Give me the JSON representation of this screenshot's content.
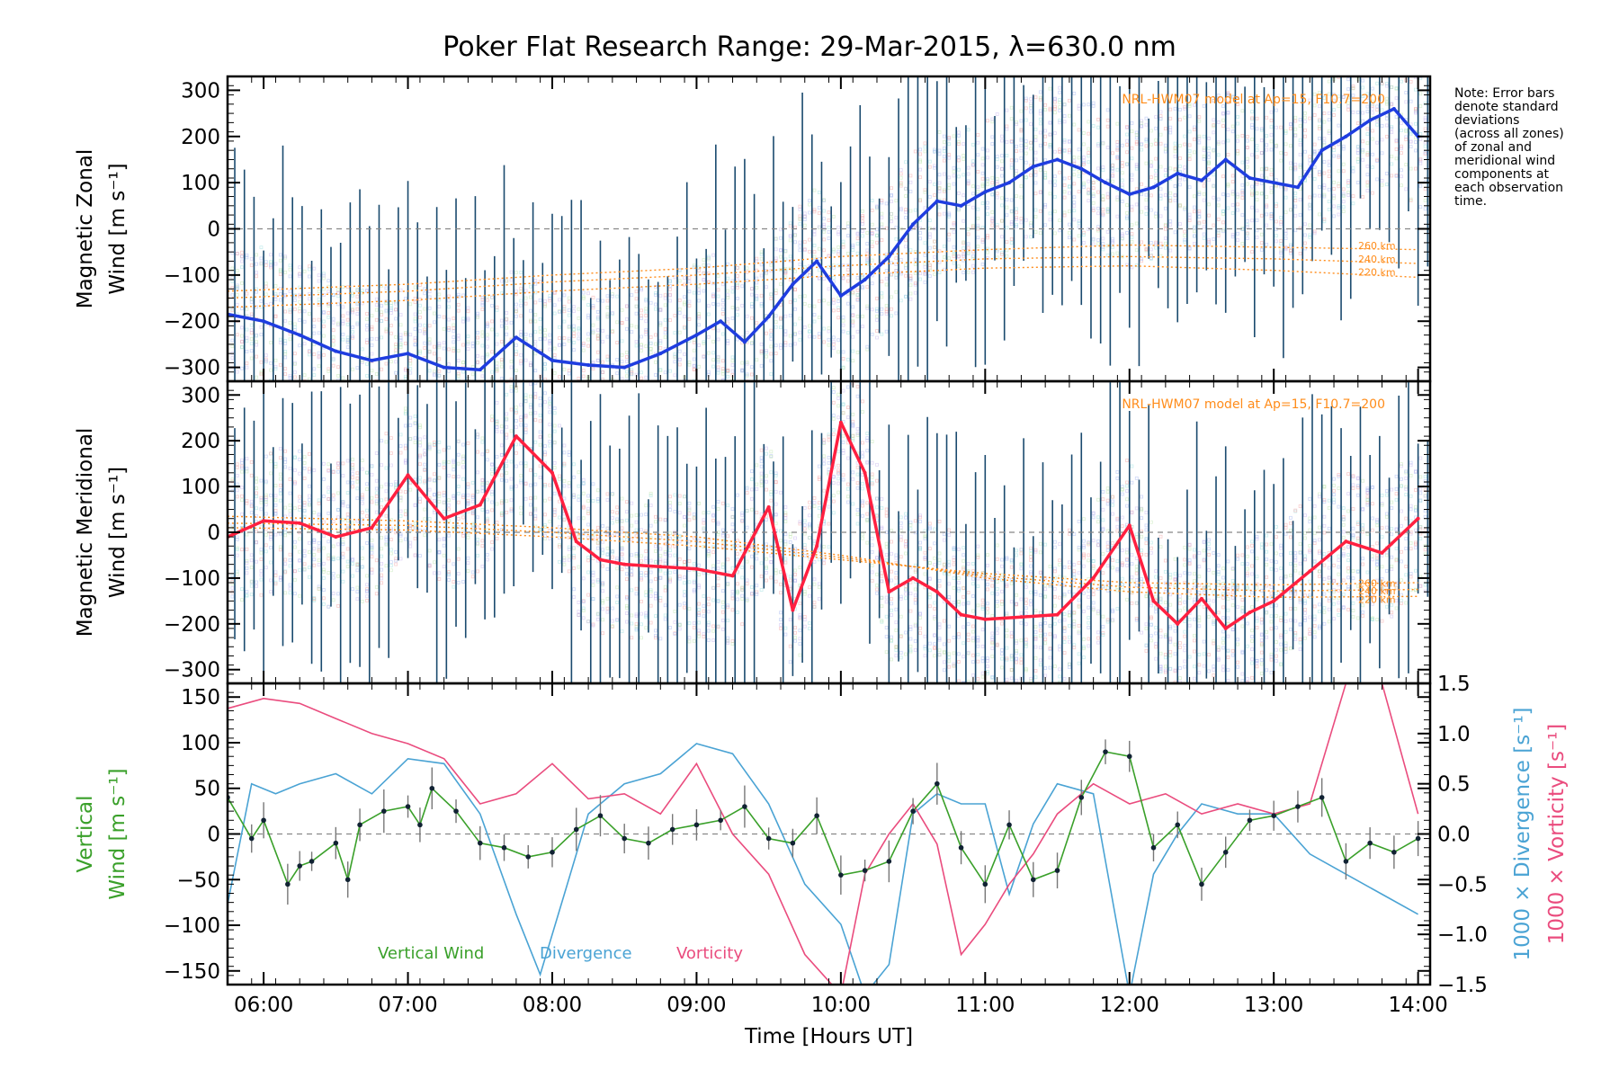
{
  "title": "Poker Flat Research Range: 29-Mar-2015, λ=630.0 nm",
  "note": [
    "Note: Error bars",
    "denote standard",
    "deviations",
    "(across all zones)",
    "of zonal and",
    "meridional wind",
    "components at",
    "each observation",
    "time."
  ],
  "colors": {
    "zonal": "#1f3de0",
    "meridional": "#ff2040",
    "vertical": "#3aa02a",
    "divergence": "#4aa3d4",
    "vorticity": "#ea4c7e",
    "model": "#ff8c1a",
    "errorbar": "#1a4a6e",
    "axis": "#000000"
  },
  "chart_data": [
    {
      "type": "line",
      "panel": "zonal",
      "ylabel": [
        "Magnetic Zonal",
        "Wind [m s⁻¹]"
      ],
      "ylim": [
        -330,
        330
      ],
      "yticks": [
        -300,
        -200,
        -100,
        0,
        100,
        200,
        300
      ],
      "model_label": "NRL-HWM07 model at Ap=15, F10.7=200",
      "model_altitudes": [
        "260 km",
        "240 km",
        "220 km"
      ],
      "series": [
        {
          "x": [
            "05:45",
            "06:00",
            "06:15",
            "06:30",
            "06:45",
            "07:00",
            "07:15",
            "07:30",
            "07:45",
            "08:00",
            "08:15",
            "08:30",
            "08:45",
            "09:00",
            "09:10",
            "09:20",
            "09:30",
            "09:40",
            "09:50",
            "10:00",
            "10:10",
            "10:20",
            "10:30",
            "10:40",
            "10:50",
            "11:00",
            "11:10",
            "11:20",
            "11:30",
            "11:40",
            "11:50",
            "12:00",
            "12:10",
            "12:20",
            "12:30",
            "12:40",
            "12:50",
            "13:00",
            "13:10",
            "13:20",
            "13:30",
            "13:40",
            "13:50",
            "14:00"
          ],
          "y": [
            -185,
            -200,
            -230,
            -265,
            -285,
            -270,
            -300,
            -305,
            -235,
            -285,
            -295,
            -300,
            -270,
            -230,
            -200,
            -245,
            -190,
            -120,
            -70,
            -145,
            -110,
            -60,
            10,
            60,
            50,
            80,
            100,
            135,
            150,
            130,
            100,
            75,
            90,
            120,
            105,
            150,
            110,
            100,
            90,
            170,
            200,
            235,
            260,
            200
          ]
        }
      ],
      "model": [
        {
          "name": "260 km",
          "x": [
            "05:45",
            "07:00",
            "08:00",
            "09:00",
            "10:00",
            "11:00",
            "12:00",
            "13:00",
            "14:00"
          ],
          "y": [
            -135,
            -120,
            -100,
            -85,
            -60,
            -45,
            -35,
            -40,
            -45
          ]
        },
        {
          "name": "240 km",
          "x": [
            "05:45",
            "07:00",
            "08:00",
            "09:00",
            "10:00",
            "11:00",
            "12:00",
            "13:00",
            "14:00"
          ],
          "y": [
            -150,
            -135,
            -115,
            -100,
            -80,
            -65,
            -60,
            -65,
            -75
          ]
        },
        {
          "name": "220 km",
          "x": [
            "05:45",
            "07:00",
            "08:00",
            "09:00",
            "10:00",
            "11:00",
            "12:00",
            "13:00",
            "14:00"
          ],
          "y": [
            -170,
            -155,
            -135,
            -120,
            -100,
            -85,
            -80,
            -90,
            -105
          ]
        }
      ]
    },
    {
      "type": "line",
      "panel": "meridional",
      "ylabel": [
        "Magnetic Meridional",
        "Wind [m s⁻¹]"
      ],
      "ylim": [
        -330,
        330
      ],
      "yticks": [
        -300,
        -200,
        -100,
        0,
        100,
        200,
        300
      ],
      "model_label": "NRL-HWM07 model at Ap=15, F10.7=200",
      "model_altitudes": [
        "260 km",
        "240 km",
        "220 km"
      ],
      "series": [
        {
          "x": [
            "05:45",
            "06:00",
            "06:15",
            "06:30",
            "06:45",
            "07:00",
            "07:15",
            "07:30",
            "07:45",
            "08:00",
            "08:10",
            "08:20",
            "08:30",
            "08:45",
            "09:00",
            "09:15",
            "09:30",
            "09:40",
            "09:50",
            "10:00",
            "10:10",
            "10:20",
            "10:30",
            "10:40",
            "10:50",
            "11:00",
            "11:15",
            "11:30",
            "11:45",
            "12:00",
            "12:10",
            "12:20",
            "12:30",
            "12:40",
            "12:50",
            "13:00",
            "13:15",
            "13:30",
            "13:45",
            "14:00"
          ],
          "y": [
            -10,
            25,
            20,
            -10,
            10,
            125,
            30,
            60,
            210,
            130,
            -20,
            -60,
            -70,
            -75,
            -80,
            -95,
            55,
            -170,
            -30,
            240,
            130,
            -130,
            -100,
            -130,
            -180,
            -190,
            -185,
            -180,
            -100,
            15,
            -150,
            -200,
            -145,
            -210,
            -175,
            -150,
            -85,
            -20,
            -45,
            30
          ]
        }
      ],
      "model": [
        {
          "name": "260 km",
          "x": [
            "05:45",
            "07:00",
            "08:00",
            "09:00",
            "10:00",
            "11:00",
            "12:00",
            "13:00",
            "14:00"
          ],
          "y": [
            10,
            5,
            -10,
            -30,
            -60,
            -90,
            -110,
            -115,
            -110
          ]
        },
        {
          "name": "240 km",
          "x": [
            "05:45",
            "07:00",
            "08:00",
            "09:00",
            "10:00",
            "11:00",
            "12:00",
            "13:00",
            "14:00"
          ],
          "y": [
            20,
            15,
            0,
            -20,
            -55,
            -95,
            -120,
            -128,
            -125
          ]
        },
        {
          "name": "220 km",
          "x": [
            "05:45",
            "07:00",
            "08:00",
            "09:00",
            "10:00",
            "11:00",
            "12:00",
            "13:00",
            "14:00"
          ],
          "y": [
            35,
            25,
            10,
            -10,
            -50,
            -100,
            -130,
            -142,
            -140
          ]
        }
      ]
    },
    {
      "type": "line",
      "panel": "vertical",
      "ylabel": [
        "Vertical",
        "Wind [m s⁻¹]"
      ],
      "ylim": [
        -165,
        165
      ],
      "yticks": [
        -150,
        -100,
        -50,
        0,
        50,
        100,
        150
      ],
      "y2label": [
        "1000 × Divergence [s⁻¹]",
        "1000 × Vorticity [s⁻¹]"
      ],
      "y2lim": [
        -1.5,
        1.5
      ],
      "y2ticks": [
        -1.5,
        -1.0,
        -0.5,
        0.0,
        0.5,
        1.0,
        1.5
      ],
      "xticks": [
        "06:00",
        "07:00",
        "08:00",
        "09:00",
        "10:00",
        "11:00",
        "12:00",
        "13:00",
        "14:00"
      ],
      "xlim": [
        "05:45",
        "14:05"
      ],
      "xlabel": "Time [Hours UT]",
      "legend": [
        "Vertical Wind",
        "Divergence",
        "Vorticity"
      ],
      "series": [
        {
          "name": "Vertical Wind",
          "axis": "left",
          "x": [
            "05:45",
            "05:55",
            "06:00",
            "06:10",
            "06:15",
            "06:20",
            "06:30",
            "06:35",
            "06:40",
            "06:50",
            "07:00",
            "07:05",
            "07:10",
            "07:20",
            "07:30",
            "07:40",
            "07:50",
            "08:00",
            "08:10",
            "08:20",
            "08:30",
            "08:40",
            "08:50",
            "09:00",
            "09:10",
            "09:20",
            "09:30",
            "09:40",
            "09:50",
            "10:00",
            "10:10",
            "10:20",
            "10:30",
            "10:40",
            "10:50",
            "11:00",
            "11:10",
            "11:20",
            "11:30",
            "11:40",
            "11:50",
            "12:00",
            "12:10",
            "12:20",
            "12:30",
            "12:40",
            "12:50",
            "13:00",
            "13:10",
            "13:20",
            "13:30",
            "13:40",
            "13:50",
            "14:00"
          ],
          "y": [
            40,
            -5,
            15,
            -55,
            -35,
            -30,
            -10,
            -50,
            10,
            25,
            30,
            10,
            50,
            25,
            -10,
            -15,
            -25,
            -20,
            5,
            20,
            -5,
            -10,
            5,
            10,
            15,
            30,
            -5,
            -10,
            20,
            -45,
            -40,
            -30,
            25,
            55,
            -15,
            -55,
            10,
            -50,
            -40,
            40,
            90,
            85,
            -15,
            10,
            -55,
            -20,
            15,
            20,
            30,
            40,
            -30,
            -10,
            -20,
            -5
          ]
        },
        {
          "name": "Divergence",
          "axis": "right",
          "x": [
            "05:45",
            "05:55",
            "06:05",
            "06:15",
            "06:30",
            "06:45",
            "07:00",
            "07:15",
            "07:30",
            "07:45",
            "07:55",
            "08:05",
            "08:15",
            "08:30",
            "08:45",
            "09:00",
            "09:15",
            "09:30",
            "09:45",
            "10:00",
            "10:10",
            "10:20",
            "10:30",
            "10:40",
            "10:50",
            "11:00",
            "11:10",
            "11:20",
            "11:30",
            "11:45",
            "12:00",
            "12:10",
            "12:20",
            "12:30",
            "12:45",
            "13:00",
            "13:15",
            "13:30",
            "13:45",
            "14:00"
          ],
          "y": [
            -0.7,
            0.5,
            0.4,
            0.5,
            0.6,
            0.4,
            0.75,
            0.7,
            0.2,
            -0.8,
            -1.4,
            -0.6,
            0.2,
            0.5,
            0.6,
            0.9,
            0.8,
            0.3,
            -0.5,
            -0.9,
            -1.6,
            -1.3,
            0.2,
            0.4,
            0.3,
            0.3,
            -0.6,
            0.1,
            0.5,
            0.4,
            -1.6,
            -0.4,
            0.0,
            0.3,
            0.2,
            0.2,
            -0.2,
            -0.4,
            -0.6,
            -0.8
          ]
        },
        {
          "name": "Vorticity",
          "axis": "right",
          "x": [
            "05:45",
            "06:00",
            "06:15",
            "06:30",
            "06:45",
            "07:00",
            "07:15",
            "07:30",
            "07:45",
            "08:00",
            "08:15",
            "08:30",
            "08:45",
            "09:00",
            "09:15",
            "09:30",
            "09:45",
            "10:00",
            "10:10",
            "10:20",
            "10:30",
            "10:40",
            "10:50",
            "11:00",
            "11:10",
            "11:20",
            "11:30",
            "11:45",
            "12:00",
            "12:15",
            "12:30",
            "12:45",
            "13:00",
            "13:15",
            "13:30",
            "13:45",
            "14:00"
          ],
          "y": [
            1.25,
            1.35,
            1.3,
            1.15,
            1.0,
            0.9,
            0.75,
            0.3,
            0.4,
            0.7,
            0.35,
            0.4,
            0.2,
            0.7,
            0.0,
            -0.4,
            -1.2,
            -1.6,
            -0.4,
            0.0,
            0.3,
            -0.1,
            -1.2,
            -0.9,
            -0.5,
            -0.2,
            0.2,
            0.5,
            0.3,
            0.4,
            0.2,
            0.3,
            0.2,
            0.3,
            1.5,
            1.5,
            0.2
          ]
        }
      ]
    }
  ]
}
